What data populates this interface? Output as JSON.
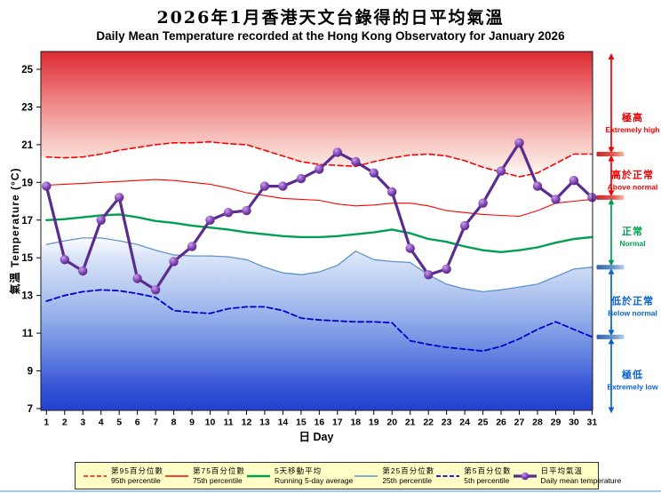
{
  "title_zh": "2026年1月香港天文台錄得的日平均氣溫",
  "title_en": "Daily Mean Temperature recorded at the Hong Kong Observatory for January 2026",
  "axes": {
    "y_label": "氣溫  Temperature (°C)",
    "x_label": "日 Day",
    "y_ticks": [
      7,
      9,
      11,
      13,
      15,
      17,
      19,
      21,
      23,
      25
    ],
    "x_ticks": [
      1,
      2,
      3,
      4,
      5,
      6,
      7,
      8,
      9,
      10,
      11,
      12,
      13,
      14,
      15,
      16,
      17,
      18,
      19,
      20,
      21,
      22,
      23,
      24,
      25,
      26,
      27,
      28,
      29,
      30,
      31
    ]
  },
  "zones": {
    "boundaries_c": [
      25.9,
      20.5,
      18.2,
      14.5,
      10.8,
      6.7
    ],
    "bands": [
      {
        "label_zh": "極高",
        "label_en": "Extremely high",
        "color": "#F00000"
      },
      {
        "label_zh": "高於正常",
        "label_en": "Above normal",
        "color": "#F00000"
      },
      {
        "label_zh": "正常",
        "label_en": "Normal",
        "color": "#00A050"
      },
      {
        "label_zh": "低於正常",
        "label_en": "Below normal",
        "color": "#0A62D0"
      },
      {
        "label_zh": "極低",
        "label_en": "Extremely low",
        "color": "#0A62D0"
      }
    ]
  },
  "chart_data": {
    "type": "line",
    "title": "Daily Mean Temperature recorded at the Hong Kong Observatory for January 2026",
    "xlabel": "日 Day",
    "ylabel": "氣溫 Temperature (°C)",
    "ylim": [
      7,
      26
    ],
    "x": [
      1,
      2,
      3,
      4,
      5,
      6,
      7,
      8,
      9,
      10,
      11,
      12,
      13,
      14,
      15,
      16,
      17,
      18,
      19,
      20,
      21,
      22,
      23,
      24,
      25,
      26,
      27,
      28,
      29,
      30,
      31
    ],
    "series": [
      {
        "name": "95th percentile",
        "name_zh": "第95百分位數",
        "style": "dashed",
        "color": "#FF0000",
        "width": 1.6,
        "values": [
          20.35,
          20.3,
          20.35,
          20.5,
          20.7,
          20.85,
          21.0,
          21.1,
          21.1,
          21.15,
          21.05,
          21.0,
          20.7,
          20.4,
          20.1,
          19.95,
          19.9,
          19.85,
          20.1,
          20.3,
          20.45,
          20.5,
          20.4,
          20.15,
          19.8,
          19.55,
          19.3,
          19.5,
          20.0,
          20.5,
          20.5
        ]
      },
      {
        "name": "75th percentile",
        "name_zh": "第75百分位數",
        "style": "solid",
        "color": "#FF0000",
        "width": 1.1,
        "values": [
          18.85,
          18.9,
          18.95,
          19.0,
          19.05,
          19.1,
          19.15,
          19.1,
          19.0,
          18.9,
          18.7,
          18.45,
          18.3,
          18.15,
          18.1,
          18.05,
          17.85,
          17.75,
          17.8,
          17.9,
          17.9,
          17.75,
          17.5,
          17.4,
          17.3,
          17.25,
          17.2,
          17.5,
          17.9,
          18.0,
          18.1
        ]
      },
      {
        "name": "Running 5-day average",
        "name_zh": "5天移動平均",
        "style": "solid",
        "color": "#00A050",
        "width": 2.4,
        "values": [
          17.0,
          17.05,
          17.15,
          17.25,
          17.3,
          17.15,
          16.95,
          16.85,
          16.7,
          16.6,
          16.5,
          16.35,
          16.25,
          16.15,
          16.1,
          16.1,
          16.15,
          16.25,
          16.35,
          16.5,
          16.3,
          16.0,
          15.85,
          15.6,
          15.4,
          15.3,
          15.4,
          15.55,
          15.8,
          16.0,
          16.1
        ]
      },
      {
        "name": "25th percentile",
        "name_zh": "第25百分位數",
        "style": "solid",
        "color": "#5C93CE",
        "width": 1.3,
        "values": [
          15.7,
          15.9,
          16.05,
          16.05,
          15.9,
          15.7,
          15.4,
          15.15,
          15.1,
          15.1,
          15.05,
          14.9,
          14.5,
          14.2,
          14.1,
          14.25,
          14.6,
          15.35,
          14.9,
          14.8,
          14.75,
          14.1,
          13.6,
          13.35,
          13.2,
          13.3,
          13.45,
          13.6,
          14.0,
          14.4,
          14.5
        ]
      },
      {
        "name": "5th percentile",
        "name_zh": "第5百分位數",
        "style": "dashed",
        "color": "#0000CD",
        "width": 1.8,
        "values": [
          12.7,
          13.0,
          13.2,
          13.3,
          13.25,
          13.1,
          12.9,
          12.2,
          12.1,
          12.05,
          12.3,
          12.4,
          12.4,
          12.2,
          11.8,
          11.7,
          11.65,
          11.6,
          11.6,
          11.55,
          10.6,
          10.4,
          10.25,
          10.15,
          10.05,
          10.3,
          10.7,
          11.2,
          11.6,
          11.2,
          10.8
        ]
      },
      {
        "name": "Daily mean temperature",
        "name_zh": "日平均氣溫",
        "style": "solid-markers",
        "color": "#5B2C8F",
        "width": 3.2,
        "values": [
          18.8,
          14.9,
          14.3,
          17.0,
          18.2,
          13.9,
          13.3,
          14.8,
          15.6,
          17.0,
          17.4,
          17.5,
          18.8,
          18.8,
          19.2,
          19.7,
          20.6,
          20.1,
          19.5,
          18.5,
          15.5,
          14.1,
          14.4,
          16.7,
          17.9,
          19.6,
          21.1,
          18.8,
          18.1,
          19.1,
          18.2
        ]
      }
    ]
  }
}
